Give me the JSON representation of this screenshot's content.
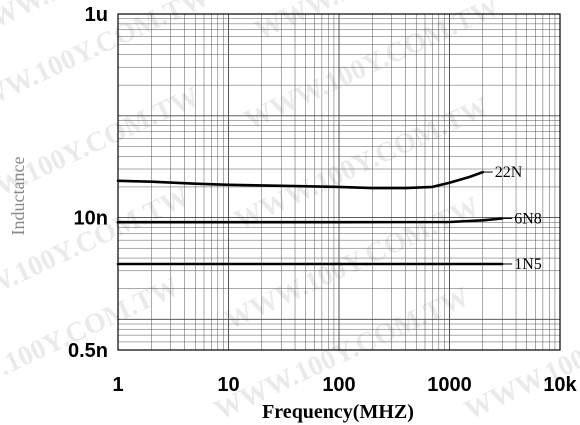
{
  "watermark": "WWW.100Y.COM.TW",
  "chart_data": {
    "type": "line",
    "title": "",
    "xlabel": "Frequency(MHZ)",
    "ylabel": "Inductance",
    "xscale": "log",
    "yscale": "log",
    "xlim": [
      1,
      10000
    ],
    "ylim": [
      5e-10,
      1e-06
    ],
    "x_ticks": [
      {
        "value": 1,
        "label": "1"
      },
      {
        "value": 10,
        "label": "10"
      },
      {
        "value": 100,
        "label": "100"
      },
      {
        "value": 1000,
        "label": "1000"
      },
      {
        "value": 10000,
        "label": "10k"
      }
    ],
    "y_ticks": [
      {
        "value": 1e-06,
        "label": "1u"
      },
      {
        "value": 1e-08,
        "label": "10n"
      },
      {
        "value": 5e-10,
        "label": "0.5n"
      }
    ],
    "grid": true,
    "series": [
      {
        "name": "22N",
        "x": [
          1,
          2,
          5,
          10,
          30,
          100,
          200,
          400,
          700,
          1000,
          1500,
          2000
        ],
        "y": [
          2.3e-08,
          2.25e-08,
          2.15e-08,
          2.1e-08,
          2.05e-08,
          2e-08,
          1.95e-08,
          1.95e-08,
          2e-08,
          2.2e-08,
          2.5e-08,
          2.8e-08
        ]
      },
      {
        "name": "6N8",
        "x": [
          1,
          10,
          100,
          1000,
          2000,
          3000
        ],
        "y": [
          9e-09,
          9e-09,
          9e-09,
          9.05e-09,
          9.4e-09,
          9.8e-09
        ]
      },
      {
        "name": "1N5",
        "x": [
          1,
          10,
          100,
          1000,
          3000
        ],
        "y": [
          3.5e-09,
          3.5e-09,
          3.5e-09,
          3.5e-09,
          3.5e-09
        ]
      }
    ]
  }
}
